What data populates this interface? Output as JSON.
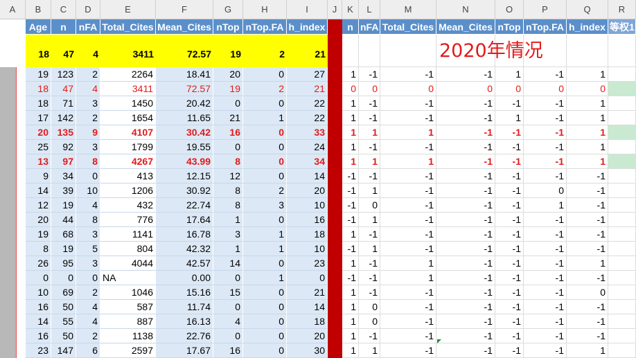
{
  "column_letters": [
    "A",
    "B",
    "C",
    "D",
    "E",
    "F",
    "G",
    "H",
    "I",
    "J",
    "K",
    "L",
    "M",
    "N",
    "O",
    "P",
    "Q",
    "R"
  ],
  "header_row": [
    "",
    "Age",
    "n",
    "nFA",
    "Total_Cites",
    "Mean_Cites",
    "nTop",
    "nTop.FA",
    "h_index",
    "",
    "n",
    "nFA",
    "Total_Cites",
    "Mean_Cites",
    "nTop",
    "nTop.FA",
    "h_index",
    "等权1"
  ],
  "summary_row": [
    "18",
    "47",
    "4",
    "3411",
    "72.57",
    "19",
    "2",
    "21"
  ],
  "title_2020": "2020年情况",
  "rows": [
    {
      "style": "normal",
      "green": false,
      "left": [
        "19",
        "123",
        "2",
        "2264",
        "18.41",
        "20",
        "0",
        "27"
      ],
      "right": [
        "1",
        "-1",
        "-1",
        "-1",
        "1",
        "-1",
        "1"
      ]
    },
    {
      "style": "red",
      "green": true,
      "left": [
        "18",
        "47",
        "4",
        "3411",
        "72.57",
        "19",
        "2",
        "21"
      ],
      "right": [
        "0",
        "0",
        "0",
        "0",
        "0",
        "0",
        "0"
      ]
    },
    {
      "style": "normal",
      "green": false,
      "left": [
        "18",
        "71",
        "3",
        "1450",
        "20.42",
        "0",
        "0",
        "22"
      ],
      "right": [
        "1",
        "-1",
        "-1",
        "-1",
        "-1",
        "-1",
        "1"
      ]
    },
    {
      "style": "normal",
      "green": false,
      "left": [
        "17",
        "142",
        "2",
        "1654",
        "11.65",
        "21",
        "1",
        "22"
      ],
      "right": [
        "1",
        "-1",
        "-1",
        "-1",
        "1",
        "-1",
        "1"
      ]
    },
    {
      "style": "redbold",
      "green": true,
      "left": [
        "20",
        "135",
        "9",
        "4107",
        "30.42",
        "16",
        "0",
        "33"
      ],
      "right": [
        "1",
        "1",
        "1",
        "-1",
        "-1",
        "-1",
        "1"
      ]
    },
    {
      "style": "normal",
      "green": false,
      "left": [
        "25",
        "92",
        "3",
        "1799",
        "19.55",
        "0",
        "0",
        "24"
      ],
      "right": [
        "1",
        "-1",
        "-1",
        "-1",
        "-1",
        "-1",
        "1"
      ]
    },
    {
      "style": "redbold",
      "green": true,
      "left": [
        "13",
        "97",
        "8",
        "4267",
        "43.99",
        "8",
        "0",
        "34"
      ],
      "right": [
        "1",
        "1",
        "1",
        "-1",
        "-1",
        "-1",
        "1"
      ]
    },
    {
      "style": "normal",
      "green": false,
      "left": [
        "9",
        "34",
        "0",
        "413",
        "12.15",
        "12",
        "0",
        "14"
      ],
      "right": [
        "-1",
        "-1",
        "-1",
        "-1",
        "-1",
        "-1",
        "-1"
      ]
    },
    {
      "style": "normal",
      "green": false,
      "left": [
        "14",
        "39",
        "10",
        "1206",
        "30.92",
        "8",
        "2",
        "20"
      ],
      "right": [
        "-1",
        "1",
        "-1",
        "-1",
        "-1",
        "0",
        "-1"
      ]
    },
    {
      "style": "normal",
      "green": false,
      "left": [
        "12",
        "19",
        "4",
        "432",
        "22.74",
        "8",
        "3",
        "10"
      ],
      "right": [
        "-1",
        "0",
        "-1",
        "-1",
        "-1",
        "1",
        "-1"
      ]
    },
    {
      "style": "normal",
      "green": false,
      "left": [
        "20",
        "44",
        "8",
        "776",
        "17.64",
        "1",
        "0",
        "16"
      ],
      "right": [
        "-1",
        "1",
        "-1",
        "-1",
        "-1",
        "-1",
        "-1"
      ]
    },
    {
      "style": "normal",
      "green": false,
      "left": [
        "19",
        "68",
        "3",
        "1141",
        "16.78",
        "3",
        "1",
        "18"
      ],
      "right": [
        "1",
        "-1",
        "-1",
        "-1",
        "-1",
        "-1",
        "-1"
      ]
    },
    {
      "style": "normal",
      "green": false,
      "left": [
        "8",
        "19",
        "5",
        "804",
        "42.32",
        "1",
        "1",
        "10"
      ],
      "right": [
        "-1",
        "1",
        "-1",
        "-1",
        "-1",
        "-1",
        "-1"
      ]
    },
    {
      "style": "normal",
      "green": false,
      "left": [
        "26",
        "95",
        "3",
        "4044",
        "42.57",
        "14",
        "0",
        "23"
      ],
      "right": [
        "1",
        "-1",
        "1",
        "-1",
        "-1",
        "-1",
        "1"
      ]
    },
    {
      "style": "normal",
      "green": false,
      "left": [
        "0",
        "0",
        "0",
        "NA",
        "0.00",
        "0",
        "1",
        "0"
      ],
      "right": [
        "-1",
        "-1",
        "1",
        "-1",
        "-1",
        "-1",
        "-1"
      ]
    },
    {
      "style": "normal",
      "green": false,
      "left": [
        "10",
        "69",
        "2",
        "1046",
        "15.16",
        "15",
        "0",
        "21"
      ],
      "right": [
        "1",
        "-1",
        "-1",
        "-1",
        "-1",
        "-1",
        "0"
      ]
    },
    {
      "style": "normal",
      "green": false,
      "left": [
        "16",
        "50",
        "4",
        "587",
        "11.74",
        "0",
        "0",
        "14"
      ],
      "right": [
        "1",
        "0",
        "-1",
        "-1",
        "-1",
        "-1",
        "-1"
      ]
    },
    {
      "style": "normal",
      "green": false,
      "left": [
        "14",
        "55",
        "4",
        "887",
        "16.13",
        "4",
        "0",
        "18"
      ],
      "right": [
        "1",
        "0",
        "-1",
        "-1",
        "-1",
        "-1",
        "-1"
      ]
    },
    {
      "style": "normal",
      "green": false,
      "left": [
        "16",
        "50",
        "2",
        "1138",
        "22.76",
        "0",
        "0",
        "20"
      ],
      "right": [
        "1",
        "-1",
        "-1",
        "-1",
        "-1",
        "-1",
        "-1"
      ]
    },
    {
      "style": "normal",
      "green": false,
      "left": [
        "23",
        "147",
        "6",
        "2597",
        "17.67",
        "16",
        "0",
        "30"
      ],
      "right": [
        "1",
        "1",
        "-1",
        "-1",
        "-1",
        "-1",
        "1"
      ]
    }
  ]
}
